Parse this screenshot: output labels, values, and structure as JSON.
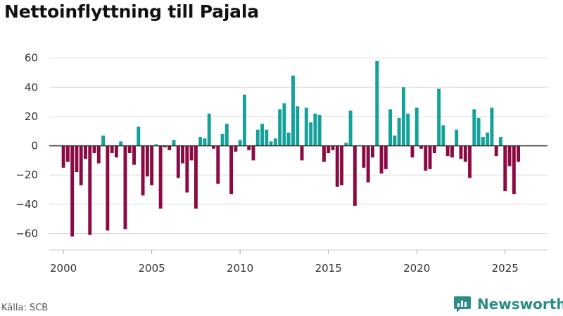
{
  "header": {
    "title": "Nettoinflyttning till Pajala"
  },
  "footer": {
    "source": "Källa: SCB",
    "brand": "Newsworthy"
  },
  "colors": {
    "positive": "#13a19a",
    "negative": "#8c0a43",
    "brand": "#2a8e86",
    "grid": "#dcdcdc",
    "zero_line": "#333333"
  },
  "chart_data": {
    "type": "bar",
    "title": "Nettoinflyttning till Pajala",
    "xlabel": "",
    "ylabel": "",
    "period": "quarterly",
    "ylim": [
      -66,
      68
    ],
    "xlim": [
      1999.2,
      2027.4
    ],
    "yticks": [
      -60,
      -40,
      -20,
      0,
      20,
      40,
      60
    ],
    "ytick_labels": [
      "−60",
      "−40",
      "−20",
      "0",
      "20",
      "40",
      "60"
    ],
    "xticks": [
      "2000",
      "2005",
      "2010",
      "2015",
      "2020",
      "2025"
    ],
    "start_year": 2000,
    "start_quarter": 1,
    "values": [
      -15,
      -11,
      -62,
      -18,
      -27,
      -9,
      -61,
      -5,
      -12,
      7,
      -58,
      -5,
      -8,
      3,
      -57,
      -5,
      -13,
      13,
      -34,
      -21,
      -27,
      1,
      -43,
      -1,
      -3,
      4,
      -22,
      -12,
      -32,
      -10,
      -43,
      6,
      5,
      22,
      -2,
      -26,
      8,
      15,
      -33,
      -4,
      4,
      35,
      -3,
      -10,
      11,
      15,
      11,
      3,
      5,
      25,
      29,
      9,
      48,
      27,
      -10,
      26,
      16,
      22,
      21,
      -11,
      -5,
      -3,
      -28,
      -27,
      2,
      24,
      -41,
      0,
      -15,
      -25,
      -8,
      58,
      -19,
      -16,
      25,
      7,
      19,
      40,
      22,
      -8,
      26,
      -2,
      -17,
      -16,
      -5,
      39,
      14,
      -7,
      -8,
      11,
      -9,
      -11,
      -22,
      25,
      19,
      6,
      9,
      26,
      -7,
      6,
      -31,
      -14,
      -33,
      -11
    ]
  }
}
